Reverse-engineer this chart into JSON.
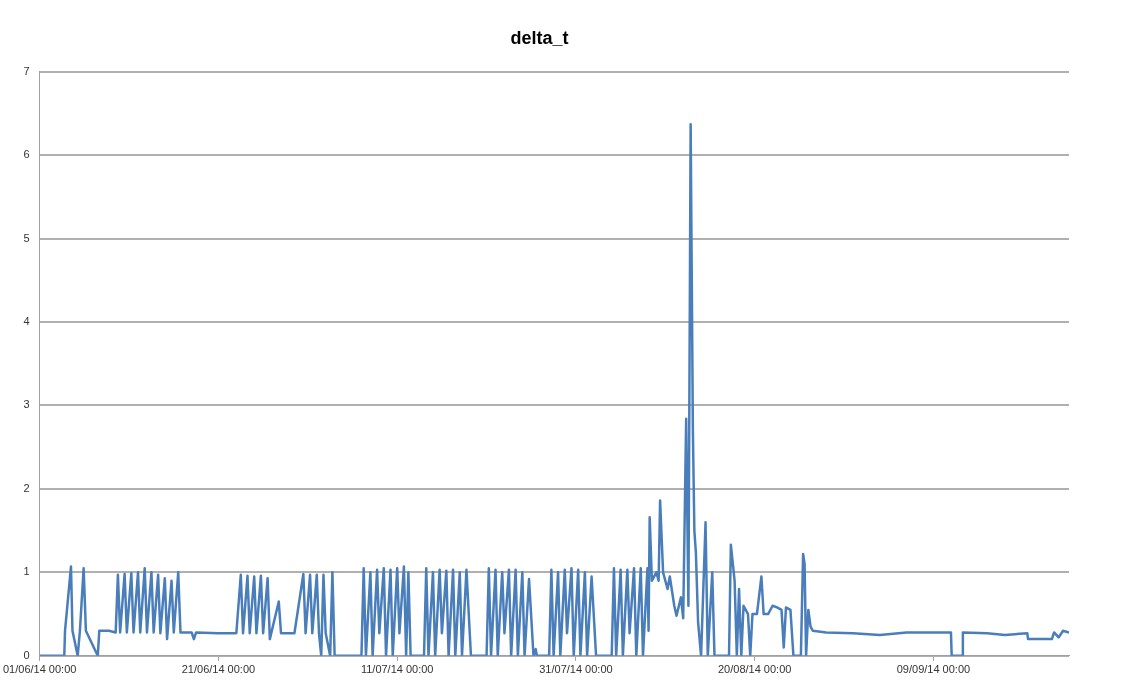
{
  "chart_data": {
    "type": "line",
    "title": "delta_t",
    "color": "#4a7ebb",
    "marker": "none",
    "line_style": "solid",
    "grid": "y",
    "legend": false,
    "xlim": [
      "2014-06-01T00:00",
      "2014-09-24T04:00"
    ],
    "xticks": [
      {
        "value": "2014-06-01T00:00",
        "label": "01/06/14 00:00"
      },
      {
        "value": "2014-06-21T00:00",
        "label": "21/06/14 00:00"
      },
      {
        "value": "2014-07-11T00:00",
        "label": "11/07/14 00:00"
      },
      {
        "value": "2014-07-31T00:00",
        "label": "31/07/14 00:00"
      },
      {
        "value": "2014-08-20T00:00",
        "label": "20/08/14 00:00"
      },
      {
        "value": "2014-09-09T00:00",
        "label": "09/09/14 00:00"
      }
    ],
    "ylim": [
      0,
      7
    ],
    "yticks": [
      0,
      1,
      2,
      3,
      4,
      5,
      6,
      7
    ],
    "x": [
      "2014-06-01T00:00",
      "2014-06-03T18:00",
      "2014-06-03T20:00",
      "2014-06-04T12:00",
      "2014-06-04T16:00",
      "2014-06-05T06:00",
      "2014-06-05T12:00",
      "2014-06-05T22:00",
      "2014-06-06T04:00",
      "2014-06-07T12:00",
      "2014-06-07T16:00",
      "2014-06-08T18:00",
      "2014-06-09T12:00",
      "2014-06-09T18:00",
      "2014-06-10T00:00",
      "2014-06-10T12:00",
      "2014-06-10T18:00",
      "2014-06-11T06:00",
      "2014-06-11T12:00",
      "2014-06-12T00:00",
      "2014-06-12T06:00",
      "2014-06-12T18:00",
      "2014-06-13T00:00",
      "2014-06-13T12:00",
      "2014-06-13T18:00",
      "2014-06-14T06:00",
      "2014-06-14T12:00",
      "2014-06-15T00:00",
      "2014-06-15T06:00",
      "2014-06-15T18:00",
      "2014-06-16T00:00",
      "2014-06-16T12:00",
      "2014-06-16T18:00",
      "2014-06-18T00:00",
      "2014-06-18T06:00",
      "2014-06-18T12:00",
      "2014-06-21T00:00",
      "2014-06-23T00:00",
      "2014-06-23T12:00",
      "2014-06-23T18:00",
      "2014-06-24T06:00",
      "2014-06-24T12:00",
      "2014-06-25T00:00",
      "2014-06-25T06:00",
      "2014-06-25T18:00",
      "2014-06-26T00:00",
      "2014-06-26T12:00",
      "2014-06-26T18:00",
      "2014-06-27T18:00",
      "2014-06-28T00:00",
      "2014-06-29T12:00",
      "2014-06-30T12:00",
      "2014-06-30T18:00",
      "2014-07-01T06:00",
      "2014-07-01T12:00",
      "2014-07-02T00:00",
      "2014-07-02T06:00",
      "2014-07-02T12:00",
      "2014-07-02T18:00",
      "2014-07-03T00:00",
      "2014-07-03T12:00",
      "2014-07-03T18:00",
      "2014-07-04T00:00",
      "2014-07-07T00:00",
      "2014-07-07T06:00",
      "2014-07-07T12:00",
      "2014-07-08T00:00",
      "2014-07-08T06:00",
      "2014-07-08T18:00",
      "2014-07-09T00:00",
      "2014-07-09T12:00",
      "2014-07-09T18:00",
      "2014-07-10T06:00",
      "2014-07-10T12:00",
      "2014-07-11T00:00",
      "2014-07-11T06:00",
      "2014-07-11T18:00",
      "2014-07-12T00:00",
      "2014-07-12T06:00",
      "2014-07-12T12:00",
      "2014-07-14T00:00",
      "2014-07-14T06:00",
      "2014-07-14T12:00",
      "2014-07-15T00:00",
      "2014-07-15T06:00",
      "2014-07-15T18:00",
      "2014-07-16T00:00",
      "2014-07-16T12:00",
      "2014-07-16T18:00",
      "2014-07-17T06:00",
      "2014-07-17T12:00",
      "2014-07-18T00:00",
      "2014-07-18T06:00",
      "2014-07-18T18:00",
      "2014-07-19T06:00",
      "2014-07-21T00:00",
      "2014-07-21T06:00",
      "2014-07-21T12:00",
      "2014-07-22T00:00",
      "2014-07-22T06:00",
      "2014-07-22T18:00",
      "2014-07-23T00:00",
      "2014-07-23T12:00",
      "2014-07-23T18:00",
      "2014-07-24T06:00",
      "2014-07-24T12:00",
      "2014-07-25T00:00",
      "2014-07-25T06:00",
      "2014-07-25T18:00",
      "2014-07-26T06:00",
      "2014-07-26T12:00",
      "2014-07-26T15:00",
      "2014-07-28T00:00",
      "2014-07-28T06:00",
      "2014-07-28T12:00",
      "2014-07-29T00:00",
      "2014-07-29T06:00",
      "2014-07-29T18:00",
      "2014-07-30T00:00",
      "2014-07-30T12:00",
      "2014-07-30T18:00",
      "2014-07-31T06:00",
      "2014-07-31T12:00",
      "2014-08-01T00:00",
      "2014-08-01T06:00",
      "2014-08-01T18:00",
      "2014-08-02T06:00",
      "2014-08-04T00:00",
      "2014-08-04T06:00",
      "2014-08-04T12:00",
      "2014-08-05T00:00",
      "2014-08-05T06:00",
      "2014-08-05T18:00",
      "2014-08-06T00:00",
      "2014-08-06T12:00",
      "2014-08-06T18:00",
      "2014-08-07T06:00",
      "2014-08-07T12:00",
      "2014-08-08T00:00",
      "2014-08-08T03:00",
      "2014-08-08T06:00",
      "2014-08-08T12:00",
      "2014-08-09T00:00",
      "2014-08-09T06:00",
      "2014-08-09T10:00",
      "2014-08-09T18:00",
      "2014-08-10T06:00",
      "2014-08-10T12:00",
      "2014-08-11T00:00",
      "2014-08-11T06:00",
      "2014-08-11T18:00",
      "2014-08-12T00:00",
      "2014-08-12T08:00",
      "2014-08-12T14:00",
      "2014-08-12T20:00",
      "2014-08-13T02:00",
      "2014-08-13T06:00",
      "2014-08-13T10:00",
      "2014-08-13T16:00",
      "2014-08-14T00:00",
      "2014-08-14T12:00",
      "2014-08-14T18:00",
      "2014-08-15T06:00",
      "2014-08-15T12:00",
      "2014-08-17T03:00",
      "2014-08-17T08:00",
      "2014-08-17T18:00",
      "2014-08-18T00:00",
      "2014-08-18T06:00",
      "2014-08-18T12:00",
      "2014-08-18T18:00",
      "2014-08-19T06:00",
      "2014-08-19T12:00",
      "2014-08-19T18:00",
      "2014-08-20T06:00",
      "2014-08-20T18:00",
      "2014-08-21T00:00",
      "2014-08-21T12:00",
      "2014-08-22T00:00",
      "2014-08-22T12:00",
      "2014-08-23T00:00",
      "2014-08-23T06:00",
      "2014-08-23T12:00",
      "2014-08-24T00:00",
      "2014-08-24T08:00",
      "2014-08-25T04:00",
      "2014-08-25T10:00",
      "2014-08-25T14:00",
      "2014-08-25T18:00",
      "2014-08-26T00:00",
      "2014-08-26T06:00",
      "2014-08-26T12:00",
      "2014-08-28T00:00",
      "2014-08-31T00:00",
      "2014-09-03T00:00",
      "2014-09-06T00:00",
      "2014-09-10T23:00",
      "2014-09-11T01:00",
      "2014-09-12T05:00",
      "2014-09-12T07:00",
      "2014-09-15T00:00",
      "2014-09-17T00:00",
      "2014-09-19T12:00",
      "2014-09-19T14:00",
      "2014-09-22T06:00",
      "2014-09-22T12:00",
      "2014-09-23T00:00",
      "2014-09-23T12:00",
      "2014-09-24T04:00"
    ],
    "values": [
      0,
      0,
      0.3,
      1.07,
      0.3,
      0,
      0.3,
      1.05,
      0.3,
      0,
      0.3,
      0.3,
      0.28,
      0.97,
      0.28,
      0.98,
      0.28,
      0.99,
      0.28,
      1.0,
      0.28,
      1.05,
      0.28,
      1.0,
      0.28,
      0.97,
      0.27,
      0.93,
      0.2,
      0.9,
      0.28,
      1.0,
      0.28,
      0.28,
      0.2,
      0.28,
      0.27,
      0.27,
      0.97,
      0.27,
      0.96,
      0.27,
      0.95,
      0.27,
      0.96,
      0.27,
      0.93,
      0.2,
      0.65,
      0.27,
      0.27,
      0.98,
      0.27,
      0.97,
      0.27,
      0.97,
      0.27,
      0,
      0.97,
      0.27,
      0,
      1.0,
      0,
      0,
      1.05,
      0,
      1.0,
      0,
      1.03,
      0.27,
      1.05,
      0,
      1.03,
      0,
      1.05,
      0.27,
      1.07,
      0,
      1.0,
      0,
      0,
      1.05,
      0,
      1.0,
      0,
      1.03,
      0.27,
      1.02,
      0,
      1.03,
      0,
      1.0,
      0,
      1.03,
      0,
      0,
      1.05,
      0,
      1.03,
      0,
      1.0,
      0.27,
      1.03,
      0,
      1.03,
      0,
      1.0,
      0,
      0.92,
      0,
      0.08,
      0,
      0,
      1.03,
      0,
      1.0,
      0,
      1.03,
      0.27,
      1.05,
      0,
      1.03,
      0,
      1.0,
      0,
      0.95,
      0,
      0,
      1.05,
      0,
      1.03,
      0,
      1.03,
      0.27,
      1.05,
      0,
      1.05,
      0,
      1.05,
      0.3,
      1.66,
      0.9,
      1.0,
      0.9,
      1.86,
      1.0,
      0.8,
      0.95,
      0.6,
      0.48,
      0.7,
      0.45,
      2.84,
      0.6,
      6.37,
      2.7,
      1.5,
      1.24,
      0.4,
      0,
      1.6,
      0,
      1.0,
      0,
      0,
      1.33,
      0.9,
      0,
      0.8,
      0,
      0.6,
      0.5,
      0,
      0.5,
      0.5,
      0.95,
      0.5,
      0.5,
      0.6,
      0.58,
      0.55,
      0.1,
      0.58,
      0.55,
      0,
      0,
      1.22,
      1.1,
      0,
      0.55,
      0.35,
      0.3,
      0.28,
      0.27,
      0.25,
      0.28,
      0.28,
      0,
      0,
      0.28,
      0.27,
      0.25,
      0.27,
      0.2,
      0.2,
      0.28,
      0.22,
      0.3,
      0.28
    ]
  }
}
